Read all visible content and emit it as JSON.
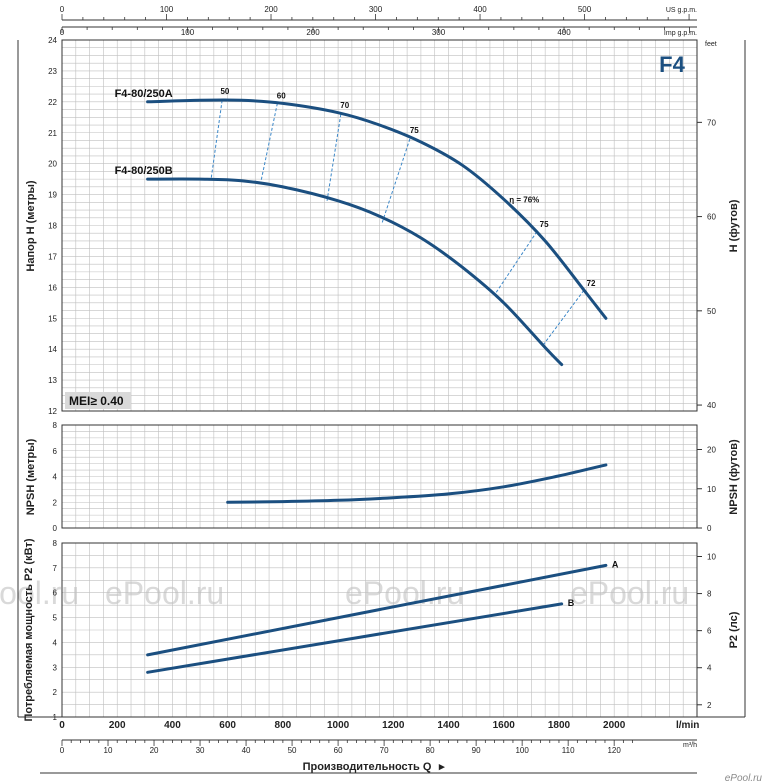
{
  "chart_data": [
    {
      "type": "line",
      "title": "F4",
      "panel": "head",
      "ylabel": "Напор H (метры)",
      "ylabel_right": "H (футов)",
      "right_unit": "feet",
      "ylim": [
        12,
        24
      ],
      "yticks": [
        12,
        13,
        14,
        15,
        16,
        17,
        18,
        19,
        20,
        21,
        22,
        23,
        24
      ],
      "ylim_right_ft": [
        39.4,
        78.7
      ],
      "yticks_right": [
        40,
        50,
        60,
        70
      ],
      "xlim": [
        0,
        2300
      ],
      "series": [
        {
          "name": "F4-80/250A",
          "x": [
            310,
            500,
            650,
            800,
            1000,
            1150,
            1300,
            1450,
            1600,
            1750,
            1900,
            1970
          ],
          "y": [
            22.0,
            22.05,
            22.05,
            21.95,
            21.65,
            21.25,
            20.7,
            19.95,
            18.85,
            17.5,
            15.8,
            15.0
          ]
        },
        {
          "name": "F4-80/250B",
          "x": [
            310,
            500,
            650,
            800,
            1000,
            1150,
            1300,
            1450,
            1600,
            1750,
            1810
          ],
          "y": [
            19.5,
            19.5,
            19.45,
            19.25,
            18.8,
            18.3,
            17.6,
            16.65,
            15.5,
            14.05,
            13.5
          ]
        }
      ],
      "efficiency_labels": [
        "50",
        "60",
        "70",
        "75",
        "η = 76%",
        "75",
        "72"
      ],
      "efficiency_lines": [
        {
          "label": "50",
          "a": [
            580,
            22.05
          ],
          "b": [
            540,
            19.5
          ]
        },
        {
          "label": "60",
          "a": [
            780,
            21.95
          ],
          "b": [
            720,
            19.4
          ]
        },
        {
          "label": "70",
          "a": [
            1010,
            21.6
          ],
          "b": [
            960,
            18.8
          ]
        },
        {
          "label": "75",
          "a": [
            1260,
            20.8
          ],
          "b": [
            1160,
            18.1
          ]
        },
        {
          "label": "75",
          "a": [
            1720,
            17.8
          ],
          "b": [
            1570,
            15.8
          ]
        },
        {
          "label": "72",
          "a": [
            1890,
            15.9
          ],
          "b": [
            1740,
            14.1
          ]
        }
      ],
      "badge": "MEI≥ 0.40"
    },
    {
      "type": "line",
      "panel": "npsh",
      "ylabel": "NPSH (метры)",
      "ylabel_right": "NPSH (футов)",
      "ylim": [
        0,
        8
      ],
      "yticks": [
        0,
        2,
        4,
        6,
        8
      ],
      "yticks_right": [
        0,
        10,
        20
      ],
      "series": [
        {
          "x": [
            600,
            800,
            1000,
            1200,
            1400,
            1600,
            1800,
            1970
          ],
          "y": [
            2.0,
            2.05,
            2.15,
            2.35,
            2.65,
            3.2,
            4.05,
            4.9
          ]
        }
      ]
    },
    {
      "type": "line",
      "panel": "power",
      "ylabel": "Потребляемая мощность P2 (кВт)",
      "ylabel_right": "P2 (лс)",
      "ylim": [
        1,
        8
      ],
      "yticks": [
        1,
        2,
        3,
        4,
        5,
        6,
        7,
        8
      ],
      "yticks_right": [
        2,
        4,
        6,
        8,
        10
      ],
      "series": [
        {
          "name": "A",
          "x": [
            310,
            1970
          ],
          "y": [
            3.5,
            7.1
          ]
        },
        {
          "name": "B",
          "x": [
            310,
            1810
          ],
          "y": [
            2.8,
            5.55
          ]
        }
      ]
    }
  ],
  "axes": {
    "x_lmin_ticks": [
      0,
      200,
      400,
      600,
      800,
      1000,
      1200,
      1400,
      1600,
      1800,
      2000
    ],
    "x_lmin_unit": "l/min",
    "x_m3h_ticks": [
      0,
      10,
      20,
      30,
      40,
      50,
      60,
      70,
      80,
      90,
      100,
      110,
      120
    ],
    "x_m3h_unit": "m³/h",
    "x_usgpm_ticks": [
      0,
      100,
      200,
      300,
      400,
      500
    ],
    "x_usgpm_unit": "US g.p.m.",
    "x_impgpm_ticks": [
      0,
      100,
      200,
      300,
      400
    ],
    "x_impgpm_unit": "Imp g.p.m.",
    "xlabel": "Производительность Q"
  },
  "watermarks": [
    "ePool.ru",
    "ePool.ru",
    "ePool.ru",
    "ePool.ru"
  ],
  "colors": {
    "curve": "#1b4f80",
    "title": "#1b4f80",
    "grid": "#bfbfbf",
    "eff": "#3b87c8",
    "badge_bg": "#d9d9d9"
  }
}
